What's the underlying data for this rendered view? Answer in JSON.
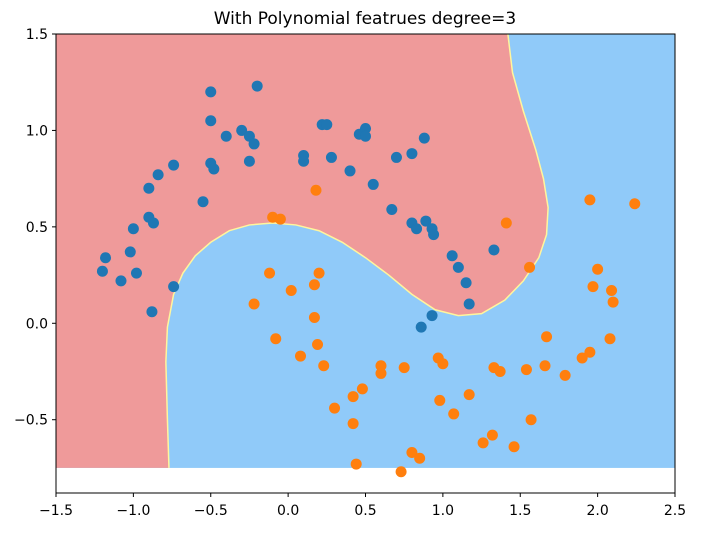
{
  "chart_data": {
    "type": "scatter",
    "title": "With Polynomial featrues degree=3",
    "xlim": [
      -1.5,
      2.5
    ],
    "ylim": [
      -0.88,
      1.5
    ],
    "x_ticks": [
      -1.5,
      -1.0,
      -0.5,
      0.0,
      0.5,
      1.0,
      1.5,
      2.0,
      2.5
    ],
    "x_tick_labels": [
      "−1.5",
      "−1.0",
      "−0.5",
      "0.0",
      "0.5",
      "1.0",
      "1.5",
      "2.0",
      "2.5"
    ],
    "y_ticks": [
      -0.5,
      0.0,
      0.5,
      1.0,
      1.5
    ],
    "y_tick_labels": [
      "−0.5",
      "0.0",
      "0.5",
      "1.0",
      "1.5"
    ],
    "grid": false,
    "legend": "none",
    "decision_region": {
      "y_min": -0.75,
      "class_0_color": "#EF9A9A",
      "class_1_color": "#90CAF9",
      "boundary_color": "#FFF59D",
      "boundary": [
        [
          -0.77,
          -0.75
        ],
        [
          -0.78,
          -0.5
        ],
        [
          -0.79,
          -0.2
        ],
        [
          -0.78,
          -0.02
        ],
        [
          -0.74,
          0.15
        ],
        [
          -0.68,
          0.26
        ],
        [
          -0.6,
          0.35
        ],
        [
          -0.5,
          0.42
        ],
        [
          -0.38,
          0.48
        ],
        [
          -0.25,
          0.51
        ],
        [
          -0.1,
          0.52
        ],
        [
          0.05,
          0.51
        ],
        [
          0.2,
          0.48
        ],
        [
          0.35,
          0.42
        ],
        [
          0.5,
          0.34
        ],
        [
          0.65,
          0.25
        ],
        [
          0.8,
          0.15
        ],
        [
          0.95,
          0.07
        ],
        [
          1.1,
          0.04
        ],
        [
          1.25,
          0.05
        ],
        [
          1.4,
          0.12
        ],
        [
          1.52,
          0.22
        ],
        [
          1.62,
          0.34
        ],
        [
          1.67,
          0.46
        ],
        [
          1.68,
          0.6
        ],
        [
          1.65,
          0.75
        ],
        [
          1.6,
          0.9
        ],
        [
          1.52,
          1.1
        ],
        [
          1.45,
          1.3
        ],
        [
          1.42,
          1.5
        ]
      ]
    },
    "series": [
      {
        "color": "#1f77b4",
        "points": [
          [
            -0.5,
            1.2
          ],
          [
            -0.2,
            1.23
          ],
          [
            -0.5,
            1.05
          ],
          [
            -0.4,
            0.97
          ],
          [
            -0.3,
            1.0
          ],
          [
            -0.25,
            0.97
          ],
          [
            -0.22,
            0.93
          ],
          [
            -0.5,
            0.83
          ],
          [
            -0.48,
            0.8
          ],
          [
            -0.25,
            0.84
          ],
          [
            -0.74,
            0.82
          ],
          [
            -0.84,
            0.77
          ],
          [
            -0.9,
            0.7
          ],
          [
            -0.55,
            0.63
          ],
          [
            -0.9,
            0.55
          ],
          [
            -0.87,
            0.52
          ],
          [
            -1.0,
            0.49
          ],
          [
            -1.18,
            0.34
          ],
          [
            -1.02,
            0.37
          ],
          [
            -1.2,
            0.27
          ],
          [
            -0.98,
            0.26
          ],
          [
            -1.08,
            0.22
          ],
          [
            -0.74,
            0.19
          ],
          [
            -0.88,
            0.06
          ],
          [
            0.1,
            0.87
          ],
          [
            0.1,
            0.84
          ],
          [
            0.22,
            1.03
          ],
          [
            0.25,
            1.03
          ],
          [
            0.28,
            0.86
          ],
          [
            0.4,
            0.79
          ],
          [
            0.46,
            0.98
          ],
          [
            0.5,
            1.01
          ],
          [
            0.5,
            0.97
          ],
          [
            0.55,
            0.72
          ],
          [
            0.7,
            0.86
          ],
          [
            0.8,
            0.88
          ],
          [
            0.88,
            0.96
          ],
          [
            0.67,
            0.59
          ],
          [
            0.8,
            0.52
          ],
          [
            0.83,
            0.49
          ],
          [
            0.89,
            0.53
          ],
          [
            0.93,
            0.49
          ],
          [
            0.94,
            0.46
          ],
          [
            1.06,
            0.35
          ],
          [
            1.1,
            0.29
          ],
          [
            1.15,
            0.21
          ],
          [
            1.17,
            0.1
          ],
          [
            1.33,
            0.38
          ],
          [
            0.93,
            0.04
          ],
          [
            0.86,
            -0.02
          ]
        ]
      },
      {
        "color": "#ff7f0e",
        "points": [
          [
            0.18,
            0.69
          ],
          [
            -0.1,
            0.55
          ],
          [
            -0.05,
            0.54
          ],
          [
            1.41,
            0.52
          ],
          [
            1.95,
            0.64
          ],
          [
            2.24,
            0.62
          ],
          [
            1.56,
            0.29
          ],
          [
            2.0,
            0.28
          ],
          [
            1.97,
            0.19
          ],
          [
            2.09,
            0.17
          ],
          [
            2.1,
            0.11
          ],
          [
            -0.12,
            0.26
          ],
          [
            0.2,
            0.26
          ],
          [
            0.17,
            0.2
          ],
          [
            0.02,
            0.17
          ],
          [
            -0.22,
            0.1
          ],
          [
            0.17,
            0.03
          ],
          [
            -0.08,
            -0.08
          ],
          [
            0.19,
            -0.11
          ],
          [
            0.08,
            -0.17
          ],
          [
            0.23,
            -0.22
          ],
          [
            0.6,
            -0.22
          ],
          [
            0.6,
            -0.26
          ],
          [
            0.75,
            -0.23
          ],
          [
            0.97,
            -0.18
          ],
          [
            1.0,
            -0.21
          ],
          [
            1.33,
            -0.23
          ],
          [
            1.37,
            -0.25
          ],
          [
            1.54,
            -0.24
          ],
          [
            1.67,
            -0.07
          ],
          [
            1.66,
            -0.22
          ],
          [
            1.79,
            -0.27
          ],
          [
            1.9,
            -0.18
          ],
          [
            1.95,
            -0.15
          ],
          [
            2.08,
            -0.08
          ],
          [
            0.48,
            -0.34
          ],
          [
            0.42,
            -0.38
          ],
          [
            0.98,
            -0.4
          ],
          [
            1.17,
            -0.37
          ],
          [
            0.3,
            -0.44
          ],
          [
            1.07,
            -0.47
          ],
          [
            1.57,
            -0.5
          ],
          [
            0.42,
            -0.52
          ],
          [
            1.32,
            -0.58
          ],
          [
            1.26,
            -0.62
          ],
          [
            1.46,
            -0.64
          ],
          [
            0.8,
            -0.67
          ],
          [
            0.85,
            -0.7
          ],
          [
            0.44,
            -0.73
          ],
          [
            0.73,
            -0.77
          ]
        ]
      }
    ]
  }
}
